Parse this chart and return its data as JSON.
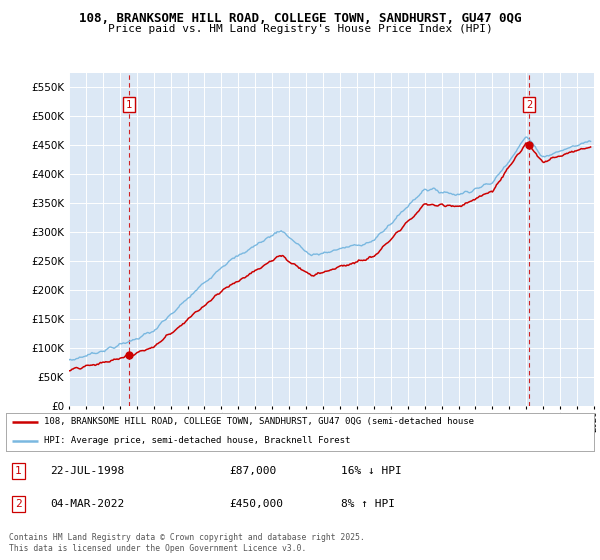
{
  "title1": "108, BRANKSOME HILL ROAD, COLLEGE TOWN, SANDHURST, GU47 0QG",
  "title2": "Price paid vs. HM Land Registry's House Price Index (HPI)",
  "ytick_vals": [
    0,
    50000,
    100000,
    150000,
    200000,
    250000,
    300000,
    350000,
    400000,
    450000,
    500000,
    550000
  ],
  "ylim": [
    0,
    575000
  ],
  "hpi_color": "#7ab8e0",
  "price_color": "#cc0000",
  "dashed_color": "#cc0000",
  "marker1_date": 1998.55,
  "marker1_price": 87000,
  "marker2_date": 2022.17,
  "marker2_price": 450000,
  "legend_label1": "108, BRANKSOME HILL ROAD, COLLEGE TOWN, SANDHURST, GU47 0QG (semi-detached house",
  "legend_label2": "HPI: Average price, semi-detached house, Bracknell Forest",
  "annotation1": [
    "1",
    "22-JUL-1998",
    "£87,000",
    "16% ↓ HPI"
  ],
  "annotation2": [
    "2",
    "04-MAR-2022",
    "£450,000",
    "8% ↑ HPI"
  ],
  "footer": "Contains HM Land Registry data © Crown copyright and database right 2025.\nThis data is licensed under the Open Government Licence v3.0.",
  "xmin": 1995,
  "xmax": 2026,
  "plot_bg": "#dce8f5",
  "grid_color": "#ffffff"
}
